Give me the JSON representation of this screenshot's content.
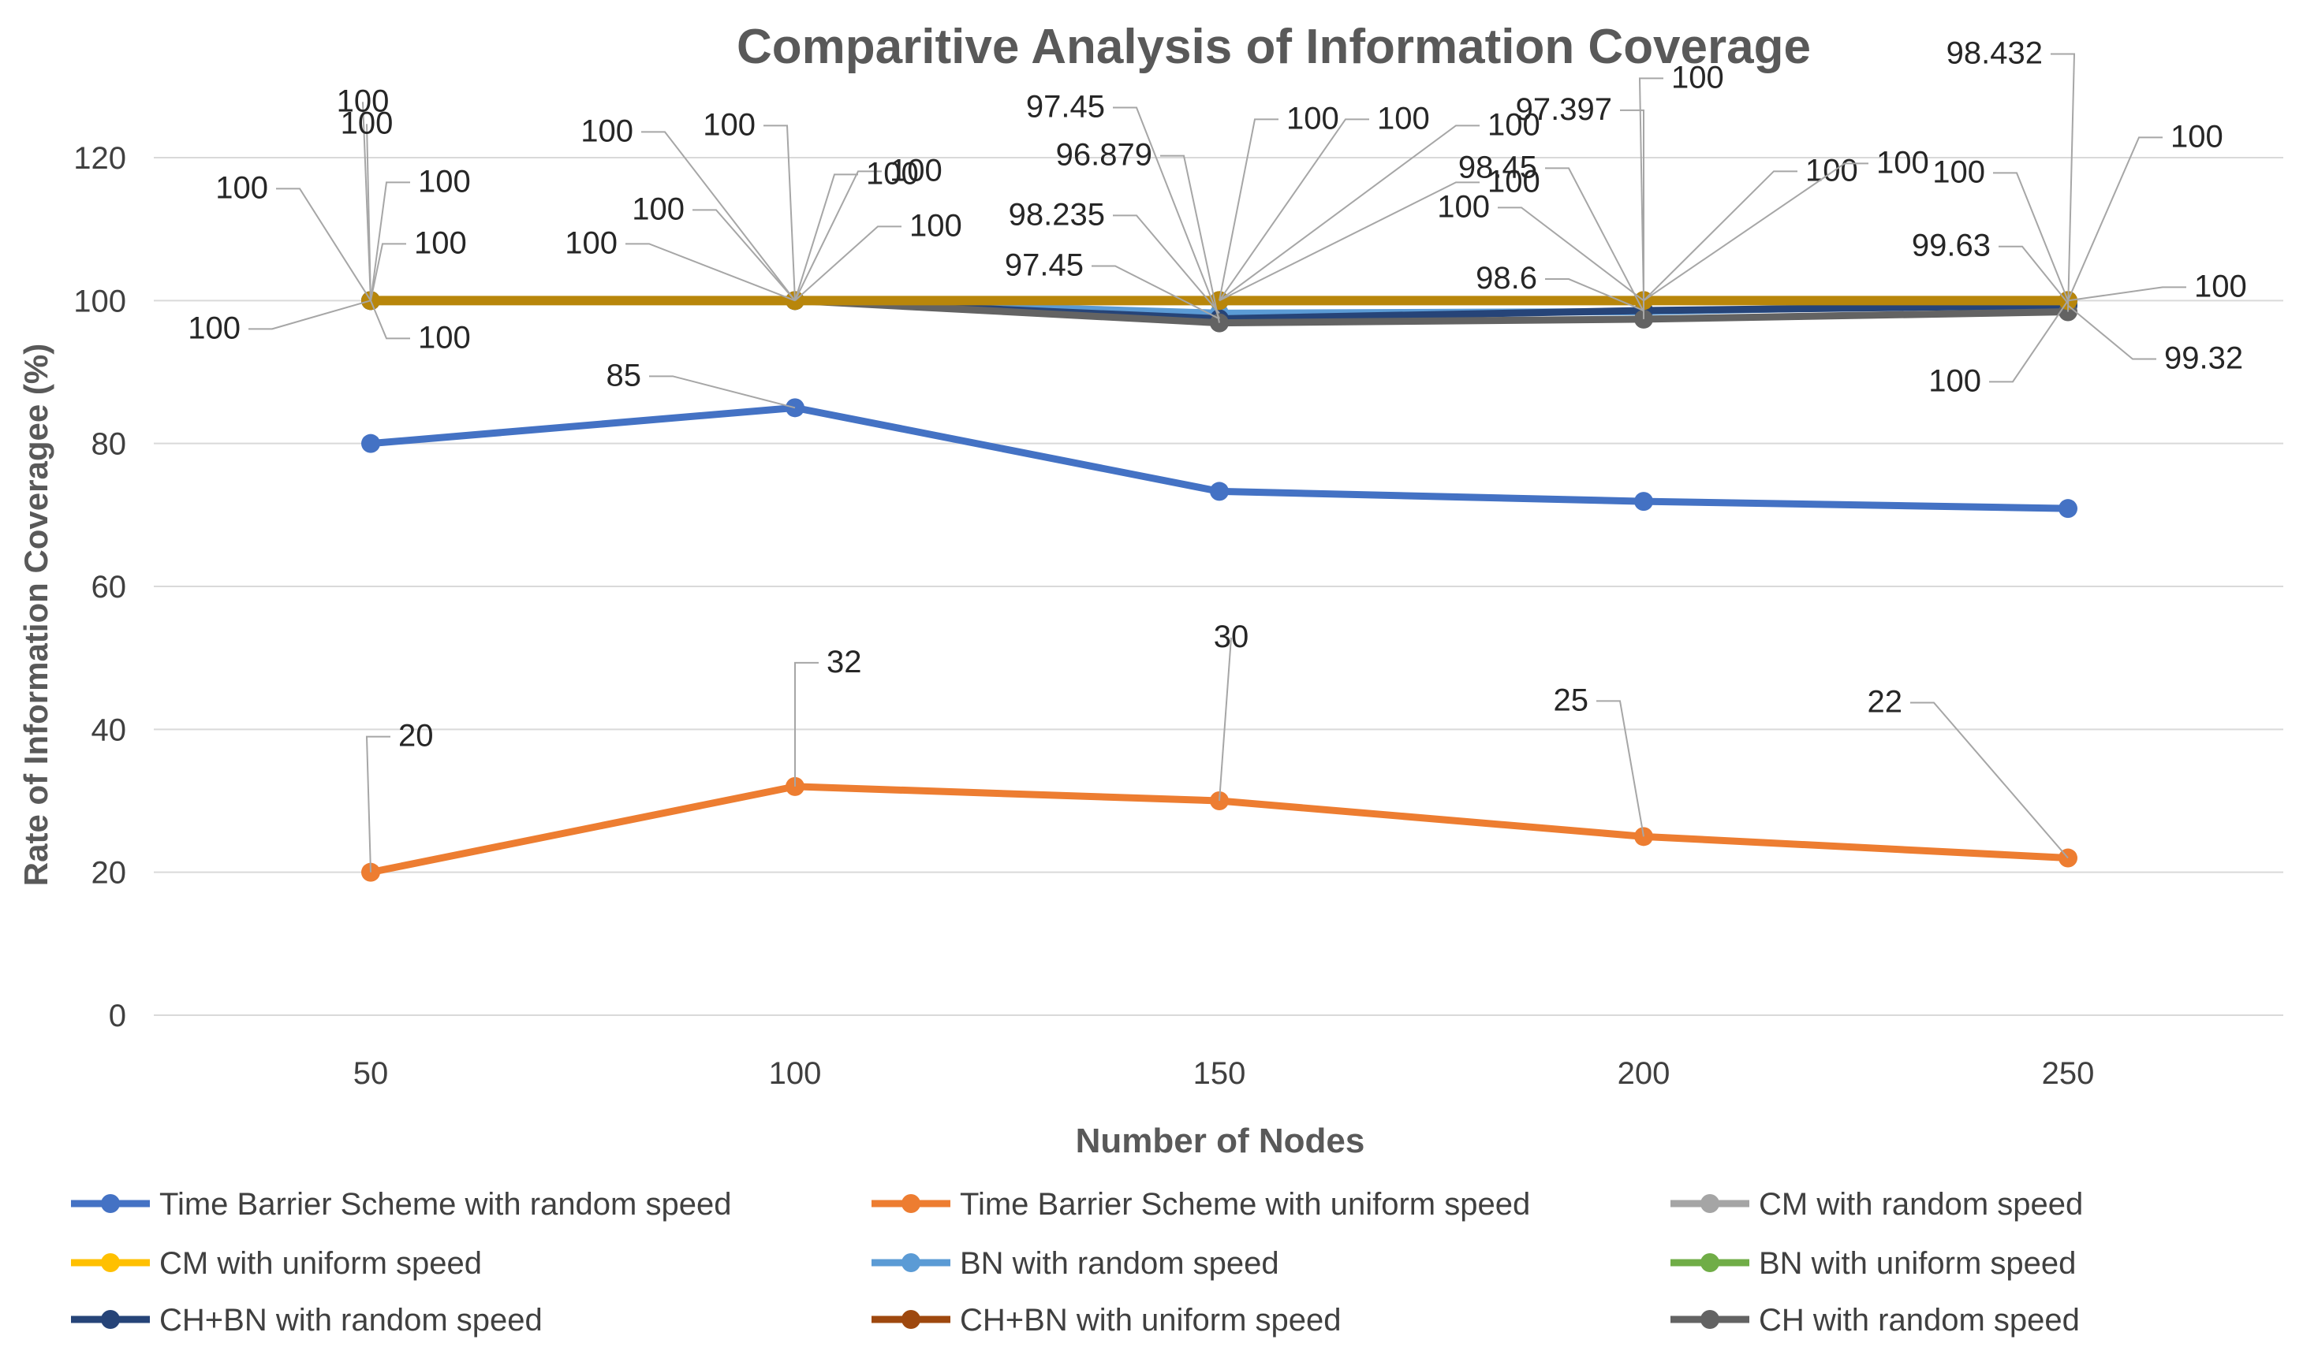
{
  "chart_data": {
    "type": "line",
    "title": "Comparitive Analysis of Information Coverage",
    "xlabel": "Number of Nodes",
    "ylabel": "Rate of  Information Coverageе (%)",
    "categories": [
      "50",
      "100",
      "150",
      "200",
      "250"
    ],
    "ylim": [
      0,
      120
    ],
    "yticks": [
      "0",
      "20",
      "40",
      "60",
      "80",
      "100",
      "120"
    ],
    "grid": "horizontal",
    "legend_position": "bottom",
    "series": [
      {
        "name": "Time Barrier Scheme with random speed",
        "color": "#4472C4",
        "values": [
          80,
          85,
          73.3,
          71.9,
          70.9
        ],
        "labels": [
          "",
          "85",
          "",
          "",
          ""
        ]
      },
      {
        "name": "Time Barrier Scheme with uniform  speed",
        "color": "#ED7D31",
        "values": [
          20,
          32,
          30,
          25,
          22
        ],
        "labels": [
          "20",
          "32",
          "30",
          "25",
          "22"
        ]
      },
      {
        "name": "CM with random speed",
        "color": "#A5A5A5",
        "values": [
          100,
          100,
          100,
          100,
          100
        ],
        "labels": [
          "100",
          "100",
          "100",
          "100",
          "100"
        ]
      },
      {
        "name": "CM with uniform speed",
        "color": "#FFC000",
        "values": [
          100,
          100,
          100,
          100,
          100
        ],
        "labels": [
          "100",
          "100",
          "100",
          "100",
          "100"
        ]
      },
      {
        "name": "BN with random speed",
        "color": "#5B9BD5",
        "values": [
          100,
          100,
          98.235,
          98.45,
          99.63
        ],
        "labels": [
          "100",
          "100",
          "98.235",
          "98.45",
          "99.63"
        ]
      },
      {
        "name": "BN with uniform speed",
        "color": "#70AD47",
        "values": [
          100,
          100,
          100,
          100,
          100
        ],
        "labels": [
          "100",
          "100",
          "100",
          "100",
          "100"
        ]
      },
      {
        "name": "CH+BN with random speed",
        "color": "#264478",
        "values": [
          100,
          100,
          97.45,
          98.6,
          99.32
        ],
        "labels": [
          "100",
          "100",
          "97.45",
          "98.6",
          "99.32"
        ]
      },
      {
        "name": "CH+BN with uniform speed",
        "color": "#9E480E",
        "values": [
          100,
          100,
          100,
          100,
          100
        ],
        "labels": [
          "100",
          "100",
          "100",
          "100",
          "100"
        ]
      },
      {
        "name": "CH with random speed",
        "color": "#636363",
        "values": [
          100,
          100,
          96.879,
          97.397,
          98.432
        ],
        "labels": [
          "100",
          "100",
          "96.879",
          "97.397",
          "98.432"
        ]
      }
    ],
    "overlay_color": "#B8860B",
    "extra_labels": [
      {
        "category": "150",
        "text": "97.45"
      }
    ]
  }
}
